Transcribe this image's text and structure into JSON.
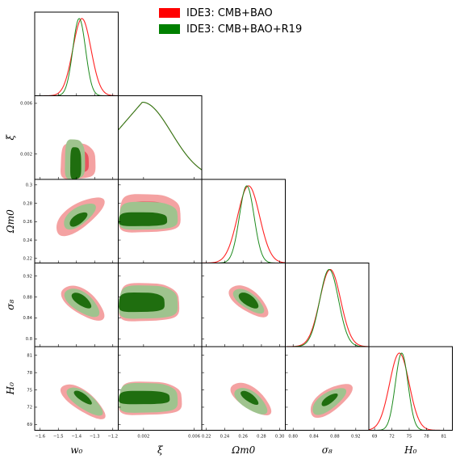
{
  "chart_data": {
    "type": "triangle",
    "legend": {
      "placement": "top-right",
      "entries": [
        {
          "label": "IDE3: CMB+BAO",
          "color": "#ff0000"
        },
        {
          "label": "IDE3: CMB+BAO+R19",
          "color": "#008000"
        }
      ]
    },
    "fill_colors": {
      "red_outer": "#f4a2a2",
      "red_inner": "#e8555f",
      "green_outer": "#9fc38e",
      "green_inner": "#1f6e0f"
    },
    "parameters": [
      {
        "name": "w0",
        "label": "w₀",
        "range": [
          -1.63,
          -1.17
        ],
        "ticks": [
          -1.6,
          -1.5,
          -1.4,
          -1.3,
          -1.2
        ],
        "tick_labels": [
          "−1.6",
          "−1.5",
          "−1.4",
          "−1.3",
          "−1.2"
        ]
      },
      {
        "name": "xi",
        "label": "ξ",
        "range": [
          0.0,
          0.0066
        ],
        "ticks": [
          0.002,
          0.006
        ],
        "tick_labels": [
          "0.002",
          "0.006"
        ]
      },
      {
        "name": "Om",
        "label": "Ωm0",
        "range": [
          0.215,
          0.306
        ],
        "ticks": [
          0.22,
          0.24,
          0.26,
          0.28,
          0.3
        ],
        "tick_labels": [
          "0.22",
          "0.24",
          "0.26",
          "0.28",
          "0.30"
        ]
      },
      {
        "name": "s8",
        "label": "σ₈",
        "range": [
          0.785,
          0.945
        ],
        "ticks": [
          0.8,
          0.84,
          0.88,
          0.92
        ],
        "tick_labels": [
          "0.80",
          "0.84",
          "0.88",
          "0.92"
        ]
      },
      {
        "name": "H0",
        "label": "H₀",
        "range": [
          68.0,
          82.5
        ],
        "ticks": [
          69,
          72,
          75,
          78,
          81
        ],
        "tick_labels": [
          "69",
          "72",
          "75",
          "78",
          "81"
        ]
      }
    ],
    "y_tick_labels": {
      "xi": {
        "ticks": [
          0.002,
          0.006
        ],
        "labels": [
          "0.002",
          "0.006"
        ]
      },
      "Om": {
        "ticks": [
          0.22,
          0.24,
          0.26,
          0.28,
          0.3
        ],
        "labels": [
          "0.22",
          "0.24",
          "0.26",
          "0.28",
          "0.3"
        ]
      },
      "s8": {
        "ticks": [
          0.8,
          0.84,
          0.88,
          0.92
        ],
        "labels": [
          "0.8",
          "0.84",
          "0.88",
          "0.92"
        ]
      },
      "H0": {
        "ticks": [
          69,
          72,
          75,
          78,
          81
        ],
        "labels": [
          "69",
          "72",
          "75",
          "78",
          "81"
        ]
      }
    },
    "marginals": [
      {
        "param": "w0",
        "red": {
          "mean": -1.37,
          "sigma": 0.05
        },
        "green": {
          "mean": -1.385,
          "sigma": 0.035
        }
      },
      {
        "param": "xi",
        "shape": "half-gaussian",
        "red": {
          "sigma": 0.0023
        },
        "green": {
          "sigma": 0.0023
        }
      },
      {
        "param": "Om",
        "red": {
          "mean": 0.266,
          "sigma": 0.012
        },
        "green": {
          "mean": 0.264,
          "sigma": 0.008
        }
      },
      {
        "param": "s8",
        "red": {
          "mean": 0.871,
          "sigma": 0.02
        },
        "green": {
          "mean": 0.869,
          "sigma": 0.018
        }
      },
      {
        "param": "H0",
        "red": {
          "mean": 73.3,
          "sigma": 1.7
        },
        "green": {
          "mean": 73.7,
          "sigma": 1.1
        }
      }
    ],
    "panels": [
      {
        "x": "w0",
        "y": "xi",
        "red_outer": {
          "x": [
            -1.49,
            -1.3
          ],
          "y": [
            0.0,
            0.0028
          ]
        },
        "green_outer": {
          "x": [
            -1.465,
            -1.355
          ],
          "y": [
            0.0,
            0.0031
          ]
        },
        "green_inner": {
          "x": [
            -1.435,
            -1.375
          ],
          "y": [
            0.0,
            0.0025
          ]
        }
      },
      {
        "x": "w0",
        "y": "Om",
        "red_outer": {
          "x": [
            -1.54,
            -1.23
          ],
          "y": [
            0.241,
            0.291
          ]
        },
        "green_outer": {
          "x": [
            -1.48,
            -1.29
          ],
          "y": [
            0.248,
            0.284
          ]
        },
        "green_inner": {
          "x": [
            -1.44,
            -1.34
          ],
          "y": [
            0.252,
            0.273
          ]
        }
      },
      {
        "x": "w0",
        "y": "s8",
        "red_outer": {
          "x": [
            -1.49,
            -1.24
          ],
          "y": [
            0.826,
            0.912
          ]
        },
        "green_outer": {
          "x": [
            -1.47,
            -1.27
          ],
          "y": [
            0.834,
            0.905
          ]
        },
        "green_inner": {
          "x": [
            -1.425,
            -1.32
          ],
          "y": [
            0.852,
            0.895
          ]
        }
      },
      {
        "x": "w0",
        "y": "H0",
        "red_outer": {
          "x": [
            -1.52,
            -1.21
          ],
          "y": [
            69.8,
            76.3
          ]
        },
        "green_outer": {
          "x": [
            -1.48,
            -1.23
          ],
          "y": [
            70.4,
            75.7
          ]
        },
        "green_inner": {
          "x": [
            -1.43,
            -1.3
          ],
          "y": [
            72.5,
            74.9
          ]
        }
      },
      {
        "x": "xi",
        "y": "Om",
        "red_outer": {
          "x": [
            0.0,
            0.0048
          ],
          "y": [
            0.248,
            0.289
          ]
        },
        "green_outer": {
          "x": [
            0.0,
            0.0046
          ],
          "y": [
            0.251,
            0.281
          ]
        },
        "green_inner": {
          "x": [
            0.0,
            0.0038
          ],
          "y": [
            0.255,
            0.27
          ]
        }
      },
      {
        "x": "xi",
        "y": "s8",
        "red_outer": {
          "x": [
            0.0,
            0.0047
          ],
          "y": [
            0.833,
            0.905
          ]
        },
        "green_outer": {
          "x": [
            0.0,
            0.0046
          ],
          "y": [
            0.838,
            0.901
          ]
        },
        "green_inner": {
          "x": [
            0.0,
            0.0036
          ],
          "y": [
            0.851,
            0.888
          ]
        }
      },
      {
        "x": "xi",
        "y": "H0",
        "red_outer": {
          "x": [
            0.0,
            0.0049
          ],
          "y": [
            70.6,
            76.3
          ]
        },
        "green_outer": {
          "x": [
            0.0,
            0.0046
          ],
          "y": [
            71.0,
            76.1
          ]
        },
        "green_inner": {
          "x": [
            0.0,
            0.004
          ],
          "y": [
            72.5,
            74.8
          ]
        }
      },
      {
        "x": "Om",
        "y": "s8",
        "red_outer": {
          "x": [
            0.244,
            0.288
          ],
          "y": [
            0.832,
            0.913
          ]
        },
        "green_outer": {
          "x": [
            0.25,
            0.282
          ],
          "y": [
            0.838,
            0.907
          ]
        },
        "green_inner": {
          "x": [
            0.255,
            0.277
          ],
          "y": [
            0.853,
            0.894
          ]
        }
      },
      {
        "x": "Om",
        "y": "H0",
        "red_outer": {
          "x": [
            0.247,
            0.29
          ],
          "y": [
            69.5,
            77.5
          ]
        },
        "green_outer": {
          "x": [
            0.249,
            0.288
          ],
          "y": [
            70.2,
            76.0
          ]
        },
        "green_inner": {
          "x": [
            0.255,
            0.279
          ],
          "y": [
            72.3,
            75.0
          ]
        }
      },
      {
        "x": "s8",
        "y": "H0",
        "red_outer": {
          "x": [
            0.826,
            0.917
          ],
          "y": [
            69.6,
            76.8
          ]
        },
        "green_outer": {
          "x": [
            0.83,
            0.906
          ],
          "y": [
            70.3,
            75.8
          ]
        },
        "green_inner": {
          "x": [
            0.85,
            0.889
          ],
          "y": [
            72.1,
            74.5
          ]
        }
      }
    ],
    "panel_orientation": {
      "w0|xi": "none",
      "w0|Om": "pos",
      "w0|s8": "neg",
      "w0|H0": "neg",
      "xi|Om": "none",
      "xi|s8": "none",
      "xi|H0": "none",
      "Om|s8": "neg",
      "Om|H0": "neg",
      "s8|H0": "pos"
    }
  }
}
